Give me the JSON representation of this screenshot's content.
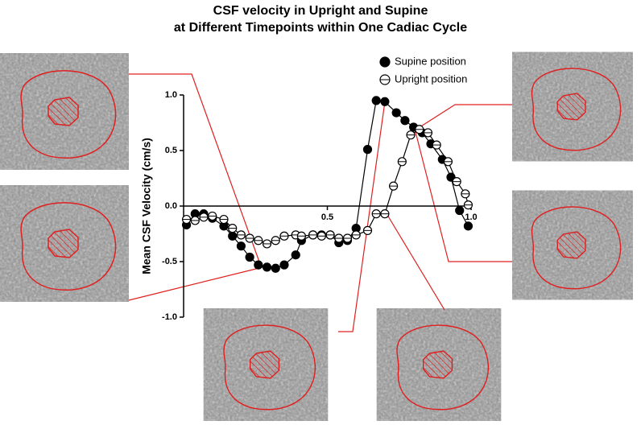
{
  "chart_data": {
    "type": "line",
    "title": "CSF velocity in Upright and Supine",
    "subtitle": "at Different Timepoints within One Cadiac Cycle",
    "y_label": "Mean CSF Velocity (cm/s)",
    "xlim": [
      0,
      1.0
    ],
    "ylim": [
      -1.0,
      1.0
    ],
    "xticks": [
      0.5,
      {
        "value": 1.0,
        "label": "1.0"
      }
    ],
    "yticks": [
      {
        "value": 1.0,
        "label": "1.0"
      },
      0.5,
      {
        "value": 0.0,
        "label": "0.0"
      },
      -0.5,
      {
        "value": -1.0,
        "label": "-1.0"
      }
    ],
    "series": [
      {
        "name": "Supine position",
        "color": "#000000",
        "marker": "filled",
        "x": [
          0.01,
          0.04,
          0.07,
          0.1,
          0.14,
          0.17,
          0.2,
          0.23,
          0.26,
          0.29,
          0.32,
          0.35,
          0.39,
          0.41,
          0.45,
          0.48,
          0.51,
          0.54,
          0.57,
          0.6,
          0.64,
          0.67,
          0.7,
          0.74,
          0.77,
          0.8,
          0.83,
          0.86,
          0.9,
          0.93,
          0.96,
          0.99
        ],
        "values": [
          -0.17,
          -0.07,
          -0.07,
          -0.11,
          -0.18,
          -0.27,
          -0.36,
          -0.46,
          -0.53,
          -0.55,
          -0.56,
          -0.53,
          -0.44,
          -0.31,
          -0.26,
          -0.26,
          -0.26,
          -0.33,
          -0.31,
          -0.2,
          0.51,
          0.95,
          0.94,
          0.84,
          0.77,
          0.71,
          0.66,
          0.56,
          0.42,
          0.26,
          -0.04,
          -0.18
        ]
      },
      {
        "name": "Upright position",
        "color": "#000000",
        "marker": "open",
        "x": [
          0.01,
          0.04,
          0.07,
          0.1,
          0.14,
          0.17,
          0.2,
          0.23,
          0.26,
          0.29,
          0.32,
          0.35,
          0.39,
          0.41,
          0.45,
          0.48,
          0.51,
          0.54,
          0.57,
          0.6,
          0.64,
          0.67,
          0.7,
          0.73,
          0.76,
          0.79,
          0.82,
          0.85,
          0.88,
          0.92,
          0.95,
          0.98,
          0.99
        ],
        "values": [
          -0.12,
          -0.13,
          -0.1,
          -0.09,
          -0.12,
          -0.2,
          -0.26,
          -0.29,
          -0.31,
          -0.34,
          -0.31,
          -0.27,
          -0.26,
          -0.27,
          -0.26,
          -0.27,
          -0.26,
          -0.29,
          -0.29,
          -0.26,
          -0.22,
          -0.07,
          -0.07,
          0.18,
          0.4,
          0.64,
          0.69,
          0.66,
          0.55,
          0.4,
          0.22,
          0.11,
          0.01
        ]
      }
    ]
  }
}
